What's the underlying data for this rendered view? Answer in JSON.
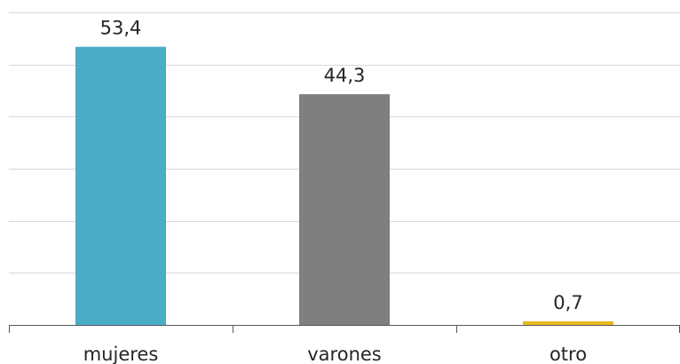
{
  "chart_data": {
    "type": "bar",
    "categories": [
      "mujeres",
      "varones",
      "otro"
    ],
    "values": [
      53.4,
      44.3,
      0.7
    ],
    "value_labels": [
      "53,4",
      "44,3",
      "0,7"
    ],
    "colors": [
      "#4BACC6",
      "#7F7F7F",
      "#E6B820"
    ],
    "ylim": [
      0,
      60
    ],
    "ytick_step": 10,
    "grid": true,
    "legend": "none"
  }
}
